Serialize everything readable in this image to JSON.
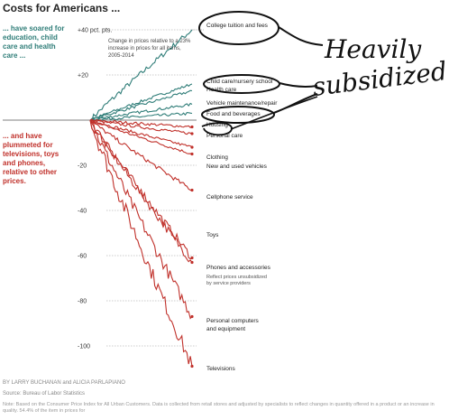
{
  "title": "Costs for Americans ...",
  "lead_up": "... have soared for education, child care and health care ...",
  "lead_down": "... and have plummeted for televisions, toys and phones, relative to other prices.",
  "note": "Change in prices relative to a 23% increase in prices for all items, 2005-2014",
  "credits": "BY LARRY BUCHANAN and ALICIA PARLAPIANO",
  "source": "Source: Bureau of Labor Statistics",
  "footnote": "Note: Based on the Consumer Price Index for All Urban Customers. Data is collected from retail stores and adjusted by specialists to reflect changes in quantity offered in a product or an increase in quality. 54.4% of the item in prices for",
  "handwriting": {
    "line1": "Heavily",
    "line2": "subsidized"
  },
  "colors": {
    "up": "#2f7d78",
    "down": "#c0302a",
    "ink": "#111111"
  },
  "chart_data": {
    "type": "line",
    "x_range": [
      2005,
      2014
    ],
    "ylim": [
      -110,
      42
    ],
    "y_ticks": [
      {
        "value": 40,
        "label": "+40 pct. pts."
      },
      {
        "value": 20,
        "label": "+20"
      },
      {
        "value": -20,
        "label": "-20"
      },
      {
        "value": -40,
        "label": "-40"
      },
      {
        "value": -60,
        "label": "-60"
      },
      {
        "value": -80,
        "label": "-80"
      },
      {
        "value": -100,
        "label": "-100"
      }
    ],
    "series": [
      {
        "name": "College tuition and fees",
        "end": 40,
        "group": "up"
      },
      {
        "name": "Child care/nursery school",
        "end": 16,
        "group": "up"
      },
      {
        "name": "Health care",
        "end": 13,
        "group": "up"
      },
      {
        "name": "Vehicle maintenance/repair",
        "end": 7,
        "group": "up"
      },
      {
        "name": "Food and beverages",
        "end": 3,
        "group": "up"
      },
      {
        "name": "Housing",
        "end": -3,
        "group": "down"
      },
      {
        "name": "Personal care",
        "end": -6,
        "group": "down"
      },
      {
        "name": "Clothing",
        "end": -12,
        "group": "down"
      },
      {
        "name": "New and used vehicles",
        "end": -15,
        "group": "down"
      },
      {
        "name": "Cellphone service",
        "end": -31,
        "group": "down"
      },
      {
        "name": "Toys",
        "end": -61,
        "group": "down"
      },
      {
        "name": "Phones and accessories",
        "end": -63,
        "group": "down",
        "sub": "Reflect prices unsubsidized by service providers"
      },
      {
        "name": "Personal computers and equipment",
        "end": -87,
        "group": "down"
      },
      {
        "name": "Televisions",
        "end": -109,
        "group": "down"
      }
    ]
  }
}
